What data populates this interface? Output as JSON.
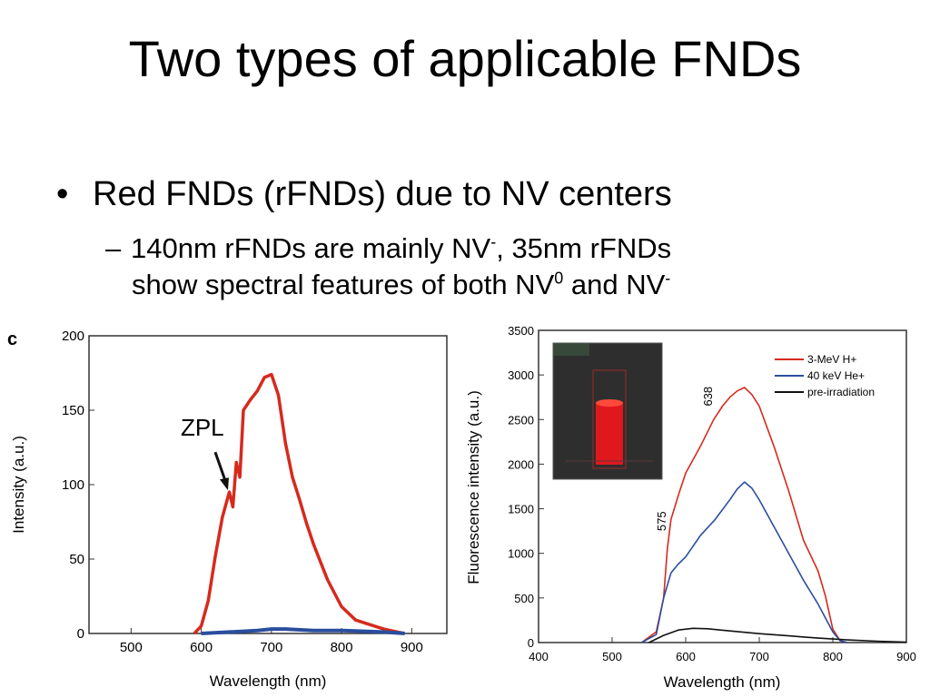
{
  "slide": {
    "title": "Two types of applicable FNDs",
    "bullet1": "Red FNDs (rFNDs) due to NV centers",
    "bullet2": {
      "part1": "140nm rFNDs are mainly NV",
      "sup1": "-",
      "part2": ", 35nm rFNDs",
      "line2a": "show spectral features of both NV",
      "sup2": "0",
      "line2b": " and NV",
      "sup3": "-"
    }
  },
  "colors": {
    "red": "#d62a1e",
    "blue": "#2a4e9e",
    "black": "#111111"
  },
  "chart_data": [
    {
      "type": "line",
      "panel_label": "c",
      "xlabel": "Wavelength (nm)",
      "ylabel": "Intensity (a.u.)",
      "xlim": [
        440,
        950
      ],
      "ylim": [
        0,
        200
      ],
      "x_ticks": [
        500,
        600,
        700,
        800,
        900
      ],
      "y_ticks": [
        0,
        50,
        100,
        150,
        200
      ],
      "annotations": [
        {
          "text": "ZPL",
          "x": 638,
          "y": 95
        }
      ],
      "series": [
        {
          "color": "#d62a1e",
          "x": [
            590,
            600,
            610,
            620,
            630,
            640,
            645,
            650,
            655,
            660,
            670,
            680,
            690,
            700,
            710,
            720,
            730,
            740,
            750,
            760,
            780,
            800,
            820,
            840,
            860,
            880,
            890
          ],
          "y": [
            0,
            5,
            22,
            52,
            78,
            95,
            85,
            115,
            105,
            150,
            157,
            163,
            172,
            174,
            160,
            128,
            105,
            90,
            74,
            60,
            36,
            18,
            9,
            6,
            3,
            1,
            0
          ]
        },
        {
          "color": "#2a4e9e",
          "x": [
            600,
            640,
            680,
            700,
            720,
            760,
            800,
            860,
            890
          ],
          "y": [
            0,
            1,
            2,
            3,
            3,
            2,
            2,
            1,
            0
          ]
        }
      ]
    },
    {
      "type": "line",
      "xlabel": "Wavelength (nm)",
      "ylabel": "Fluorescence intensity (a.u.)",
      "xlim": [
        400,
        900
      ],
      "ylim": [
        0,
        3500
      ],
      "x_ticks": [
        400,
        500,
        600,
        700,
        800,
        900
      ],
      "y_ticks": [
        0,
        500,
        1000,
        1500,
        2000,
        2500,
        3000,
        3500
      ],
      "legend_position": "top-right",
      "annotations": [
        {
          "text": "575",
          "x": 575
        },
        {
          "text": "638",
          "x": 638
        }
      ],
      "series": [
        {
          "name": "3-MeV H+",
          "color": "#d62a1e",
          "x": [
            540,
            560,
            570,
            575,
            580,
            590,
            600,
            620,
            638,
            650,
            660,
            670,
            680,
            690,
            700,
            720,
            740,
            760,
            780,
            790,
            800,
            810,
            820
          ],
          "y": [
            0,
            120,
            500,
            1050,
            1380,
            1650,
            1900,
            2200,
            2500,
            2650,
            2750,
            2820,
            2860,
            2780,
            2650,
            2200,
            1700,
            1150,
            800,
            520,
            150,
            20,
            0
          ]
        },
        {
          "name": "40 keV He+",
          "color": "#2a4e9e",
          "x": [
            540,
            560,
            570,
            580,
            590,
            600,
            620,
            640,
            660,
            670,
            680,
            690,
            700,
            720,
            740,
            760,
            780,
            800,
            810,
            820
          ],
          "y": [
            0,
            90,
            500,
            780,
            880,
            960,
            1200,
            1380,
            1600,
            1720,
            1800,
            1730,
            1600,
            1300,
            1000,
            700,
            430,
            120,
            20,
            0
          ]
        },
        {
          "name": "pre-irradiation",
          "color": "#111111",
          "x": [
            550,
            570,
            590,
            610,
            630,
            660,
            700,
            740,
            780,
            820,
            860,
            900
          ],
          "y": [
            0,
            80,
            140,
            160,
            155,
            130,
            100,
            75,
            50,
            30,
            15,
            5
          ]
        }
      ]
    }
  ]
}
